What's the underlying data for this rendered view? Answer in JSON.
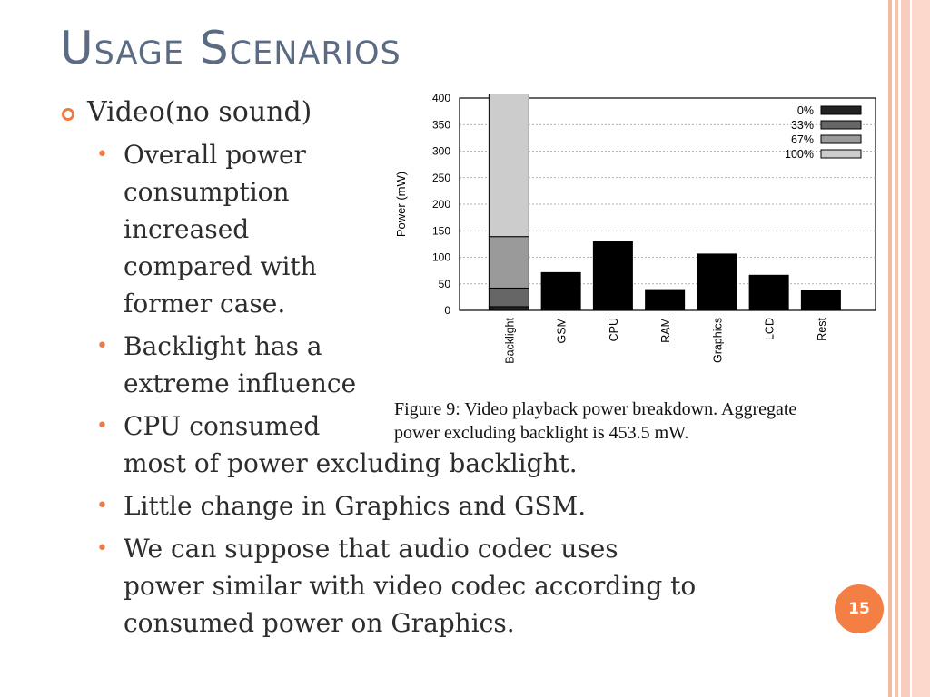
{
  "slide": {
    "title": "Usage Scenarios",
    "page_number": "15"
  },
  "content": {
    "heading": "Video(no sound)",
    "points": [
      "Overall power",
      "consumption",
      "increased",
      "compared with",
      "former case.",
      "Backlight has a",
      "extreme influence",
      "CPU consumed",
      "most of power excluding backlight.",
      "Little change in Graphics and GSM.",
      "We can suppose that audio codec uses",
      "power similar with video codec according to",
      "consumed power on Graphics."
    ]
  },
  "figure": {
    "caption_line1": "Figure 9: Video playback power breakdown. Aggregate",
    "caption_line2": "power excluding backlight is 453.5 mW."
  },
  "colors": {
    "title": "#5b6b83",
    "accent": "#ee7a47",
    "badge": "#f47f44"
  },
  "chart_data": {
    "type": "bar",
    "ylabel": "Power (mW)",
    "ylim": [
      0,
      400
    ],
    "yticks": [
      0,
      50,
      100,
      150,
      200,
      250,
      300,
      350,
      400
    ],
    "grid": true,
    "legend_position": "top-right",
    "legend": [
      {
        "label": "0%",
        "color": "#222222"
      },
      {
        "label": "33%",
        "color": "#666666"
      },
      {
        "label": "67%",
        "color": "#9a9a9a"
      },
      {
        "label": "100%",
        "color": "#cccccc"
      }
    ],
    "stacked_category": {
      "name": "Backlight",
      "segments": [
        {
          "label": "0%",
          "value": 7
        },
        {
          "label": "33%",
          "value": 35
        },
        {
          "label": "67%",
          "value": 97
        },
        {
          "label": "100%",
          "value": 276
        }
      ]
    },
    "categories": [
      "GSM",
      "CPU",
      "RAM",
      "Graphics",
      "LCD",
      "Rest"
    ],
    "values": [
      72,
      130,
      40,
      107,
      67,
      38
    ]
  }
}
